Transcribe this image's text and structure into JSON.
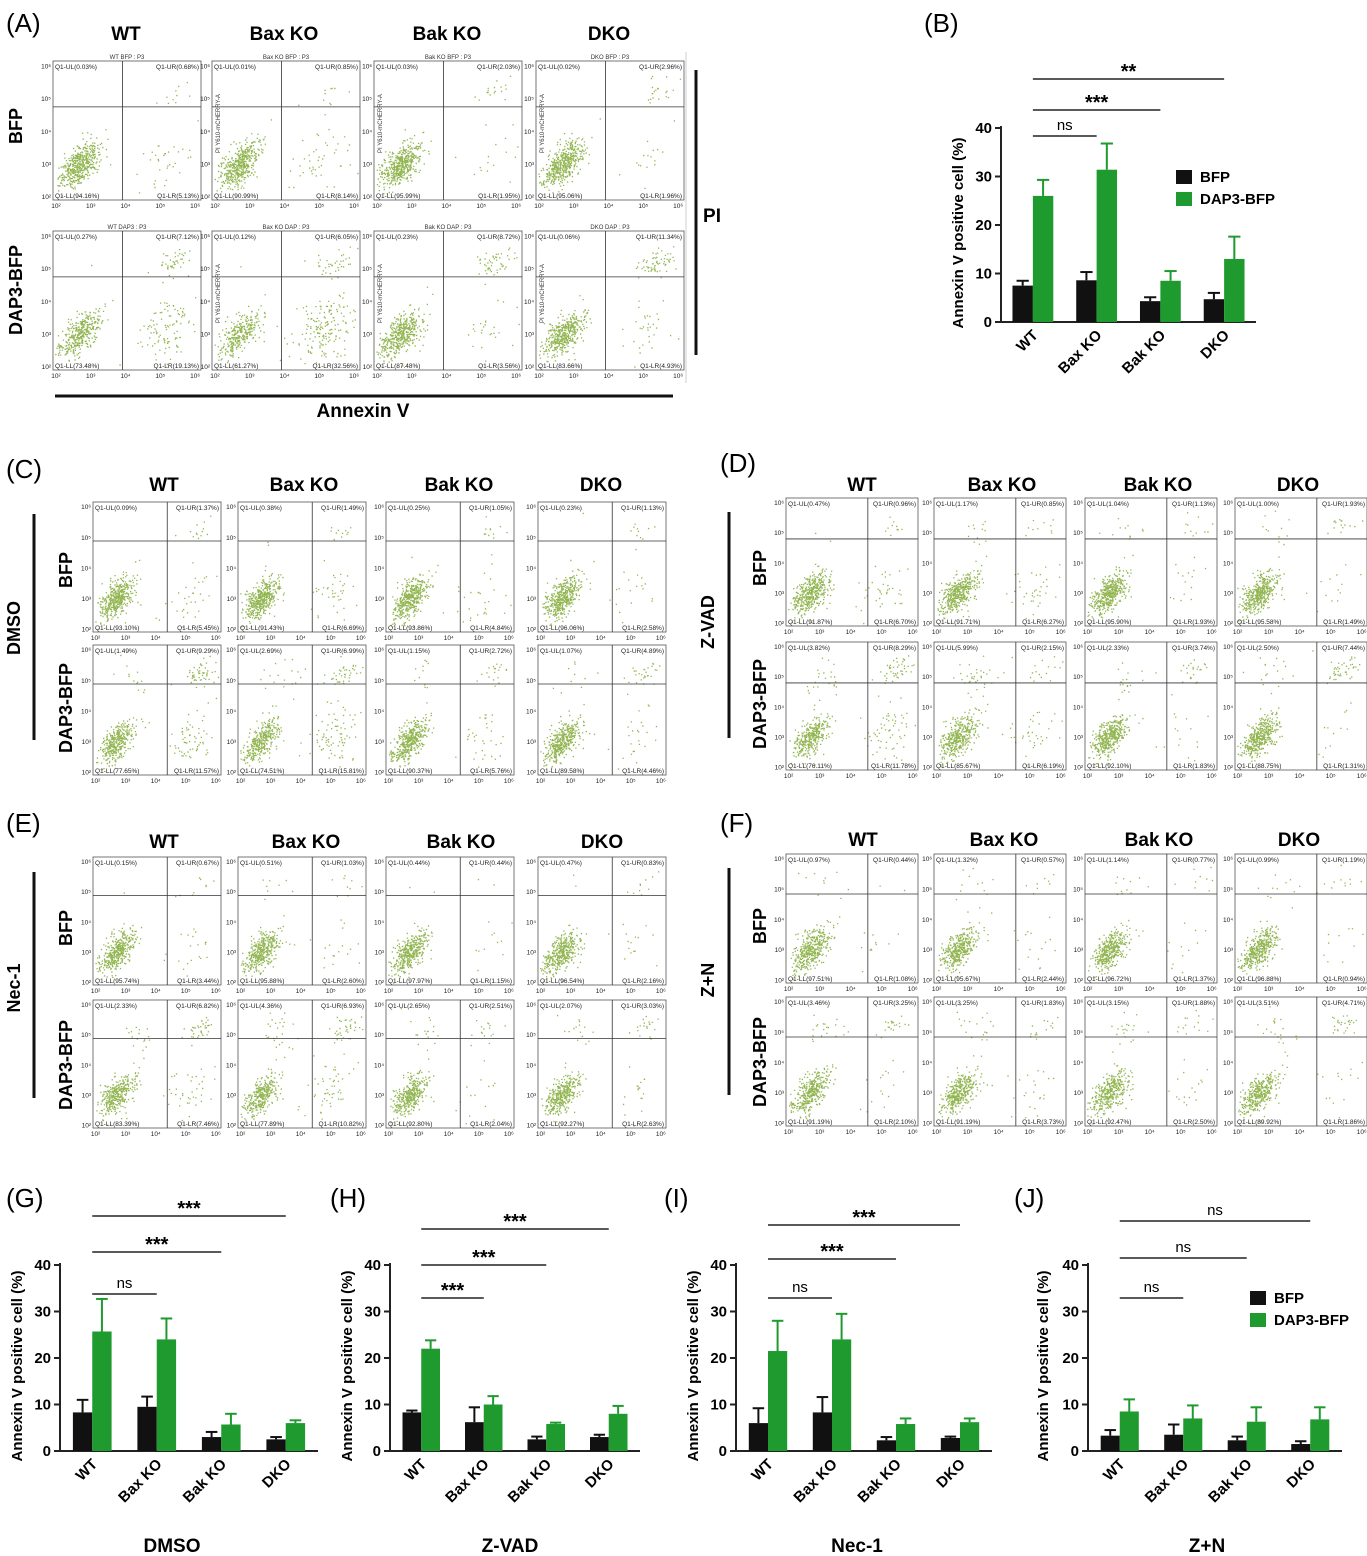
{
  "colors": {
    "dot": "#6f9e1a",
    "bfp": "#111111",
    "dap3": "#1e9a2e",
    "axis": "#222222"
  },
  "panel_a": {
    "label": "(A)",
    "columns": [
      "WT",
      "Bax KO",
      "Bak KO",
      "DKO"
    ],
    "rows": [
      "BFP",
      "DAP3-BFP"
    ],
    "x_title": "Annexin V",
    "y_title": "PI",
    "y_axis_text": "PI Y610-mCHERRY-A",
    "ticks_x": [
      "10²",
      "10³",
      "10⁴",
      "10⁵",
      "10⁶"
    ],
    "ticks_y": [
      "10²",
      "10³",
      "10⁴",
      "10⁵",
      "10⁶"
    ],
    "plot_titles": [
      [
        "WT BFP : P3",
        "Bax KO BFP : P3",
        "Bak KO BFP : P3",
        "DKO BFP : P3"
      ],
      [
        "WT DAP3 : P3",
        "Bax KO DAP : P3",
        "Bak KO DAP : P3",
        "DKO DAP : P3"
      ]
    ],
    "quadrants": [
      [
        {
          "ul": "Q1-UL(0.03%)",
          "ur": "Q1-UR(0.68%)",
          "ll": "Q1-LL(94.16%)",
          "lr": "Q1-LR(5.13%)"
        },
        {
          "ul": "Q1-UL(0.01%)",
          "ur": "Q1-UR(0.85%)",
          "ll": "Q1-LL(90.99%)",
          "lr": "Q1-LR(8.14%)"
        },
        {
          "ul": "Q1-UL(0.03%)",
          "ur": "Q1-UR(2.03%)",
          "ll": "Q1-LL(95.99%)",
          "lr": "Q1-LR(1.95%)"
        },
        {
          "ul": "Q1-UL(0.02%)",
          "ur": "Q1-UR(2.96%)",
          "ll": "Q1-LL(95.06%)",
          "lr": "Q1-LR(1.96%)"
        }
      ],
      [
        {
          "ul": "Q1-UL(0.27%)",
          "ur": "Q1-UR(7.12%)",
          "ll": "Q1-LL(73.48%)",
          "lr": "Q1-LR(19.13%)"
        },
        {
          "ul": "Q1-UL(0.12%)",
          "ur": "Q1-UR(6.05%)",
          "ll": "Q1-LL(61.27%)",
          "lr": "Q1-LR(32.56%)"
        },
        {
          "ul": "Q1-UL(0.23%)",
          "ur": "Q1-UR(8.72%)",
          "ll": "Q1-LL(87.48%)",
          "lr": "Q1-LR(3.56%)"
        },
        {
          "ul": "Q1-UL(0.06%)",
          "ur": "Q1-UR(11.34%)",
          "ll": "Q1-LL(83.66%)",
          "lr": "Q1-LR(4.93%)"
        }
      ]
    ]
  },
  "panel_c": {
    "label": "(C)",
    "treatment": "DMSO",
    "columns": [
      "WT",
      "Bax KO",
      "Bak KO",
      "DKO"
    ],
    "rows": [
      "BFP",
      "DAP3-BFP"
    ],
    "quadrants": [
      [
        {
          "ul": "Q1-UL(0.09%)",
          "ur": "Q1-UR(1.37%)",
          "ll": "Q1-LL(93.10%)",
          "lr": "Q1-LR(5.45%)"
        },
        {
          "ul": "Q1-UL(0.38%)",
          "ur": "Q1-UR(1.49%)",
          "ll": "Q1-LL(91.43%)",
          "lr": "Q1-LR(6.69%)"
        },
        {
          "ul": "Q1-UL(0.25%)",
          "ur": "Q1-UR(1.05%)",
          "ll": "Q1-LL(93.86%)",
          "lr": "Q1-LR(4.84%)"
        },
        {
          "ul": "Q1-UL(0.23%)",
          "ur": "Q1-UR(1.13%)",
          "ll": "Q1-LL(96.06%)",
          "lr": "Q1-LR(2.58%)"
        }
      ],
      [
        {
          "ul": "Q1-UL(1.49%)",
          "ur": "Q1-UR(9.29%)",
          "ll": "Q1-LL(77.65%)",
          "lr": "Q1-LR(11.57%)"
        },
        {
          "ul": "Q1-UL(2.69%)",
          "ur": "Q1-UR(6.99%)",
          "ll": "Q1-LL(74.51%)",
          "lr": "Q1-LR(15.81%)"
        },
        {
          "ul": "Q1-UL(1.15%)",
          "ur": "Q1-UR(2.72%)",
          "ll": "Q1-LL(90.37%)",
          "lr": "Q1-LR(5.76%)"
        },
        {
          "ul": "Q1-UL(1.07%)",
          "ur": "Q1-UR(4.89%)",
          "ll": "Q1-LL(89.58%)",
          "lr": "Q1-LR(4.46%)"
        }
      ]
    ]
  },
  "panel_d": {
    "label": "(D)",
    "treatment": "Z-VAD",
    "columns": [
      "WT",
      "Bax KO",
      "Bak KO",
      "DKO"
    ],
    "rows": [
      "BFP",
      "DAP3-BFP"
    ],
    "quadrants": [
      [
        {
          "ul": "Q1-UL(0.47%)",
          "ur": "Q1-UR(0.96%)",
          "ll": "Q1-LL(91.87%)",
          "lr": "Q1-LR(6.70%)"
        },
        {
          "ul": "Q1-UL(1.17%)",
          "ur": "Q1-UR(0.85%)",
          "ll": "Q1-LL(91.71%)",
          "lr": "Q1-LR(6.27%)"
        },
        {
          "ul": "Q1-UL(1.04%)",
          "ur": "Q1-UR(1.13%)",
          "ll": "Q1-LL(95.90%)",
          "lr": "Q1-LR(1.93%)"
        },
        {
          "ul": "Q1-UL(1.00%)",
          "ur": "Q1-UR(1.93%)",
          "ll": "Q1-LL(95.58%)",
          "lr": "Q1-LR(1.49%)"
        }
      ],
      [
        {
          "ul": "Q1-UL(3.82%)",
          "ur": "Q1-UR(8.29%)",
          "ll": "Q1-LL(76.11%)",
          "lr": "Q1-LR(11.78%)"
        },
        {
          "ul": "Q1-UL(5.99%)",
          "ur": "Q1-UR(2.15%)",
          "ll": "Q1-LL(85.67%)",
          "lr": "Q1-LR(6.19%)"
        },
        {
          "ul": "Q1-UL(2.33%)",
          "ur": "Q1-UR(3.74%)",
          "ll": "Q1-LL(92.10%)",
          "lr": "Q1-LR(1.83%)"
        },
        {
          "ul": "Q1-UL(2.50%)",
          "ur": "Q1-UR(7.44%)",
          "ll": "Q1-LL(88.75%)",
          "lr": "Q1-LR(1.31%)"
        }
      ]
    ]
  },
  "panel_e": {
    "label": "(E)",
    "treatment": "Nec-1",
    "columns": [
      "WT",
      "Bax KO",
      "Bak KO",
      "DKO"
    ],
    "rows": [
      "BFP",
      "DAP3-BFP"
    ],
    "quadrants": [
      [
        {
          "ul": "Q1-UL(0.15%)",
          "ur": "Q1-UR(0.67%)",
          "ll": "Q1-LL(95.74%)",
          "lr": "Q1-LR(3.44%)"
        },
        {
          "ul": "Q1-UL(0.51%)",
          "ur": "Q1-UR(1.03%)",
          "ll": "Q1-LL(95.88%)",
          "lr": "Q1-LR(2.60%)"
        },
        {
          "ul": "Q1-UL(0.44%)",
          "ur": "Q1-UR(0.44%)",
          "ll": "Q1-LL(97.97%)",
          "lr": "Q1-LR(1.15%)"
        },
        {
          "ul": "Q1-UL(0.47%)",
          "ur": "Q1-UR(0.83%)",
          "ll": "Q1-LL(96.54%)",
          "lr": "Q1-LR(2.16%)"
        }
      ],
      [
        {
          "ul": "Q1-UL(2.33%)",
          "ur": "Q1-UR(6.82%)",
          "ll": "Q1-LL(83.39%)",
          "lr": "Q1-LR(7.46%)"
        },
        {
          "ul": "Q1-UL(4.36%)",
          "ur": "Q1-UR(6.93%)",
          "ll": "Q1-LL(77.89%)",
          "lr": "Q1-LR(10.82%)"
        },
        {
          "ul": "Q1-UL(2.65%)",
          "ur": "Q1-UR(2.51%)",
          "ll": "Q1-LL(92.80%)",
          "lr": "Q1-LR(2.04%)"
        },
        {
          "ul": "Q1-UL(2.07%)",
          "ur": "Q1-UR(3.03%)",
          "ll": "Q1-LL(92.27%)",
          "lr": "Q1-LR(2.63%)"
        }
      ]
    ]
  },
  "panel_f": {
    "label": "(F)",
    "treatment": "Z+N",
    "columns": [
      "WT",
      "Bax KO",
      "Bak KO",
      "DKO"
    ],
    "rows": [
      "BFP",
      "DAP3-BFP"
    ],
    "quadrants": [
      [
        {
          "ul": "Q1-UL(0.97%)",
          "ur": "Q1-UR(0.44%)",
          "ll": "Q1-LL(97.51%)",
          "lr": "Q1-LR(1.08%)"
        },
        {
          "ul": "Q1-UL(1.32%)",
          "ur": "Q1-UR(0.57%)",
          "ll": "Q1-LL(95.67%)",
          "lr": "Q1-LR(2.44%)"
        },
        {
          "ul": "Q1-UL(1.14%)",
          "ur": "Q1-UR(0.77%)",
          "ll": "Q1-LL(96.72%)",
          "lr": "Q1-LR(1.37%)"
        },
        {
          "ul": "Q1-UL(0.99%)",
          "ur": "Q1-UR(1.19%)",
          "ll": "Q1-LL(96.88%)",
          "lr": "Q1-LR(0.94%)"
        }
      ],
      [
        {
          "ul": "Q1-UL(3.46%)",
          "ur": "Q1-UR(3.25%)",
          "ll": "Q1-LL(91.19%)",
          "lr": "Q1-LR(2.10%)"
        },
        {
          "ul": "Q1-UL(3.25%)",
          "ur": "Q1-UR(1.83%)",
          "ll": "Q1-LL(91.19%)",
          "lr": "Q1-LR(3.73%)"
        },
        {
          "ul": "Q1-UL(3.15%)",
          "ur": "Q1-UR(1.88%)",
          "ll": "Q1-LL(92.47%)",
          "lr": "Q1-LR(2.50%)"
        },
        {
          "ul": "Q1-UL(3.51%)",
          "ur": "Q1-UR(4.71%)",
          "ll": "Q1-LL(89.92%)",
          "lr": "Q1-LR(1.86%)"
        }
      ]
    ]
  },
  "chart_data": [
    {
      "id": "B",
      "panel_label": "(B)",
      "type": "bar",
      "categories": [
        "WT",
        "Bax KO",
        "Bak KO",
        "DKO"
      ],
      "series": [
        {
          "name": "BFP",
          "values": [
            7.5,
            8.6,
            4.3,
            4.7
          ],
          "errors": [
            1.0,
            1.7,
            0.8,
            1.3
          ]
        },
        {
          "name": "DAP3-BFP",
          "values": [
            26.0,
            31.4,
            8.5,
            13.0
          ],
          "errors": [
            3.3,
            5.4,
            2.0,
            4.6
          ]
        }
      ],
      "ylabel": "Annexin V positive cell (%)",
      "xlabel": "",
      "ylim": [
        0,
        40
      ],
      "yticks": [
        0,
        10,
        20,
        30,
        40
      ],
      "legend": "top-right",
      "brackets": [
        {
          "from": "WT",
          "to": "Bax KO",
          "label": "ns"
        },
        {
          "from": "WT",
          "to": "Bak KO",
          "label": "***"
        },
        {
          "from": "WT",
          "to": "DKO",
          "label": "**"
        }
      ]
    },
    {
      "id": "G",
      "panel_label": "(G)",
      "type": "bar",
      "categories": [
        "WT",
        "Bax KO",
        "Bak KO",
        "DKO"
      ],
      "series": [
        {
          "name": "BFP",
          "values": [
            8.3,
            9.5,
            3.0,
            2.5
          ],
          "errors": [
            2.7,
            2.2,
            1.1,
            0.5
          ]
        },
        {
          "name": "DAP3-BFP",
          "values": [
            25.7,
            24.0,
            5.7,
            6.0
          ],
          "errors": [
            7.0,
            4.5,
            2.3,
            0.6
          ]
        }
      ],
      "ylabel": "Annexin V positive cell (%)",
      "xlabel": "DMSO",
      "ylim": [
        0,
        40
      ],
      "yticks": [
        0,
        10,
        20,
        30,
        40
      ],
      "brackets": [
        {
          "from": "WT",
          "to": "Bax KO",
          "label": "ns"
        },
        {
          "from": "WT",
          "to": "Bak KO",
          "label": "***"
        },
        {
          "from": "WT",
          "to": "DKO",
          "label": "***"
        }
      ]
    },
    {
      "id": "H",
      "panel_label": "(H)",
      "type": "bar",
      "categories": [
        "WT",
        "Bax KO",
        "Bak KO",
        "DKO"
      ],
      "series": [
        {
          "name": "BFP",
          "values": [
            8.3,
            6.2,
            2.5,
            3.0
          ],
          "errors": [
            0.4,
            3.2,
            0.6,
            0.5
          ]
        },
        {
          "name": "DAP3-BFP",
          "values": [
            22.0,
            10.0,
            5.8,
            8.0
          ],
          "errors": [
            1.8,
            1.8,
            0.3,
            1.7
          ]
        }
      ],
      "ylabel": "Annexin V positive cell (%)",
      "xlabel": "Z-VAD",
      "ylim": [
        0,
        40
      ],
      "yticks": [
        0,
        10,
        20,
        30,
        40
      ],
      "brackets": [
        {
          "from": "WT",
          "to": "Bax KO",
          "label": "***"
        },
        {
          "from": "WT",
          "to": "Bak KO",
          "label": "***"
        },
        {
          "from": "WT",
          "to": "DKO",
          "label": "***"
        }
      ]
    },
    {
      "id": "I",
      "panel_label": "(I)",
      "type": "bar",
      "categories": [
        "WT",
        "Bax KO",
        "Bak KO",
        "DKO"
      ],
      "series": [
        {
          "name": "BFP",
          "values": [
            6.0,
            8.3,
            2.3,
            2.8
          ],
          "errors": [
            3.2,
            3.3,
            0.7,
            0.3
          ]
        },
        {
          "name": "DAP3-BFP",
          "values": [
            21.5,
            24.0,
            5.8,
            6.2
          ],
          "errors": [
            6.5,
            5.5,
            1.2,
            0.8
          ]
        }
      ],
      "ylabel": "Annexin V positive cell (%)",
      "xlabel": "Nec-1",
      "ylim": [
        0,
        40
      ],
      "yticks": [
        0,
        10,
        20,
        30,
        40
      ],
      "brackets": [
        {
          "from": "WT",
          "to": "Bax KO",
          "label": "ns"
        },
        {
          "from": "WT",
          "to": "Bak KO",
          "label": "***"
        },
        {
          "from": "WT",
          "to": "DKO",
          "label": "***"
        }
      ]
    },
    {
      "id": "J",
      "panel_label": "(J)",
      "type": "bar",
      "categories": [
        "WT",
        "Bax KO",
        "Bak KO",
        "DKO"
      ],
      "series": [
        {
          "name": "BFP",
          "values": [
            3.3,
            3.5,
            2.3,
            1.5
          ],
          "errors": [
            1.2,
            2.2,
            0.8,
            0.6
          ]
        },
        {
          "name": "DAP3-BFP",
          "values": [
            8.5,
            7.0,
            6.3,
            6.8
          ],
          "errors": [
            2.6,
            2.8,
            3.1,
            2.6
          ]
        }
      ],
      "ylabel": "Annexin V positive cell (%)",
      "xlabel": "Z+N",
      "ylim": [
        0,
        40
      ],
      "yticks": [
        0,
        10,
        20,
        30,
        40
      ],
      "legend": "top-right",
      "brackets": [
        {
          "from": "WT",
          "to": "Bax KO",
          "label": "ns"
        },
        {
          "from": "WT",
          "to": "Bak KO",
          "label": "ns"
        },
        {
          "from": "WT",
          "to": "DKO",
          "label": "ns"
        }
      ]
    }
  ]
}
